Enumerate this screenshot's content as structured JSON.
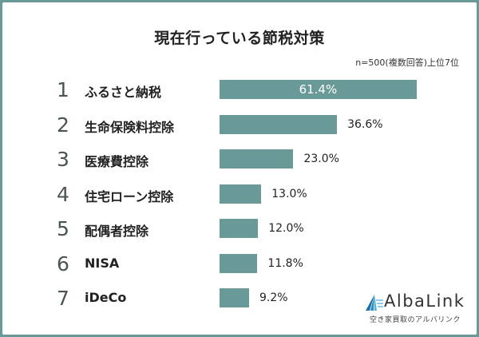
{
  "title": "現在行っている節税対策",
  "note": "n=500(複数回答)上位7位",
  "colors": {
    "frame": "#6a9a98",
    "bar": "#6a9a98",
    "background": "#ffffff",
    "text": "#222222"
  },
  "rows": [
    {
      "rank": "1",
      "label": "ふるさと納税",
      "value": "61.4%"
    },
    {
      "rank": "2",
      "label": "生命保険料控除",
      "value": "36.6%"
    },
    {
      "rank": "3",
      "label": "医療費控除",
      "value": "23.0%"
    },
    {
      "rank": "4",
      "label": "住宅ローン控除",
      "value": "13.0%"
    },
    {
      "rank": "5",
      "label": "配偶者控除",
      "value": "12.0%"
    },
    {
      "rank": "6",
      "label": "NISA",
      "value": "11.8%"
    },
    {
      "rank": "7",
      "label": "iDeCo",
      "value": "9.2%"
    }
  ],
  "logo": {
    "name": "AlbaLink",
    "tagline": "空き家買取のアルバリンク",
    "icon": "triangle-rays-logo-icon"
  },
  "chart_data": {
    "type": "bar",
    "orientation": "horizontal",
    "title": "現在行っている節税対策",
    "subtitle": "n=500(複数回答)上位7位",
    "categories": [
      "ふるさと納税",
      "生命保険料控除",
      "医療費控除",
      "住宅ローン控除",
      "配偶者控除",
      "NISA",
      "iDeCo"
    ],
    "values": [
      61.4,
      36.6,
      23.0,
      13.0,
      12.0,
      11.8,
      9.2
    ],
    "unit": "%",
    "xlabel": "",
    "ylabel": "",
    "grid": false,
    "legend": null,
    "data_labels": true
  }
}
